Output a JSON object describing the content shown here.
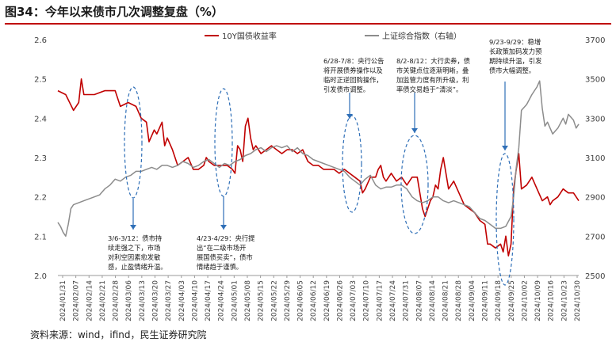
{
  "title": "图34：今年以来债市几次调整复盘（%）",
  "source": "资料来源：wind，ifind，民生证券研究院",
  "chart_data": {
    "type": "line",
    "series": [
      {
        "name": "10Y国债收益率",
        "axis": "left",
        "color": "#c00000",
        "points": [
          [
            0,
            2.47
          ],
          [
            3,
            2.46
          ],
          [
            6,
            2.42
          ],
          [
            8,
            2.44
          ],
          [
            9,
            2.5
          ],
          [
            10,
            2.46
          ],
          [
            14,
            2.46
          ],
          [
            18,
            2.47
          ],
          [
            22,
            2.47
          ],
          [
            24,
            2.43
          ],
          [
            27,
            2.44
          ],
          [
            30,
            2.43
          ],
          [
            32,
            2.4
          ],
          [
            34,
            2.39
          ],
          [
            35,
            2.34
          ],
          [
            37,
            2.37
          ],
          [
            38,
            2.36
          ],
          [
            40,
            2.39
          ],
          [
            41,
            2.33
          ],
          [
            42,
            2.35
          ],
          [
            44,
            2.32
          ],
          [
            46,
            2.28
          ],
          [
            48,
            2.29
          ],
          [
            50,
            2.3
          ],
          [
            52,
            2.27
          ],
          [
            54,
            2.27
          ],
          [
            56,
            2.28
          ],
          [
            57,
            2.3
          ],
          [
            58,
            2.29
          ],
          [
            60,
            2.28
          ],
          [
            62,
            2.28
          ],
          [
            65,
            2.28
          ],
          [
            67,
            2.27
          ],
          [
            68,
            2.26
          ],
          [
            69,
            2.33
          ],
          [
            70,
            2.32
          ],
          [
            71,
            2.29
          ],
          [
            72,
            2.38
          ],
          [
            73,
            2.4
          ],
          [
            74,
            2.35
          ],
          [
            75,
            2.32
          ],
          [
            76,
            2.33
          ],
          [
            78,
            2.31
          ],
          [
            80,
            2.32
          ],
          [
            82,
            2.33
          ],
          [
            84,
            2.32
          ],
          [
            86,
            2.31
          ],
          [
            88,
            2.32
          ],
          [
            90,
            2.32
          ],
          [
            92,
            2.31
          ],
          [
            94,
            2.32
          ],
          [
            96,
            2.29
          ],
          [
            98,
            2.28
          ],
          [
            100,
            2.28
          ],
          [
            102,
            2.27
          ],
          [
            104,
            2.27
          ],
          [
            106,
            2.27
          ],
          [
            108,
            2.26
          ],
          [
            110,
            2.27
          ],
          [
            112,
            2.26
          ],
          [
            114,
            2.25
          ],
          [
            116,
            2.24
          ],
          [
            117,
            2.21
          ],
          [
            118,
            2.22
          ],
          [
            120,
            2.25
          ],
          [
            122,
            2.25
          ],
          [
            123,
            2.27
          ],
          [
            124,
            2.28
          ],
          [
            125,
            2.25
          ],
          [
            126,
            2.24
          ],
          [
            128,
            2.26
          ],
          [
            130,
            2.24
          ],
          [
            132,
            2.25
          ],
          [
            134,
            2.23
          ],
          [
            136,
            2.25
          ],
          [
            138,
            2.25
          ],
          [
            140,
            2.17
          ],
          [
            141,
            2.15
          ],
          [
            142,
            2.17
          ],
          [
            143,
            2.19
          ],
          [
            144,
            2.2
          ],
          [
            145,
            2.23
          ],
          [
            146,
            2.22
          ],
          [
            147,
            2.27
          ],
          [
            148,
            2.3
          ],
          [
            149,
            2.26
          ],
          [
            150,
            2.22
          ],
          [
            152,
            2.24
          ],
          [
            154,
            2.21
          ],
          [
            156,
            2.18
          ],
          [
            158,
            2.17
          ],
          [
            160,
            2.16
          ],
          [
            162,
            2.14
          ],
          [
            164,
            2.13
          ],
          [
            165,
            2.08
          ],
          [
            166,
            2.08
          ],
          [
            168,
            2.07
          ],
          [
            170,
            2.08
          ],
          [
            171,
            2.06
          ],
          [
            172,
            2.1
          ],
          [
            173,
            2.05
          ],
          [
            174,
            2.08
          ],
          [
            175,
            2.22
          ],
          [
            176,
            2.27
          ],
          [
            177,
            2.31
          ],
          [
            178,
            2.22
          ],
          [
            180,
            2.23
          ],
          [
            182,
            2.25
          ],
          [
            184,
            2.22
          ],
          [
            186,
            2.19
          ],
          [
            188,
            2.2
          ],
          [
            189,
            2.18
          ],
          [
            190,
            2.19
          ],
          [
            192,
            2.2
          ],
          [
            194,
            2.22
          ],
          [
            196,
            2.21
          ],
          [
            198,
            2.21
          ],
          [
            200,
            2.19
          ]
        ]
      },
      {
        "name": "上证综合指数（右轴）",
        "axis": "right",
        "color": "#8c8c8c",
        "points": [
          [
            0,
            2770
          ],
          [
            1,
            2750
          ],
          [
            2,
            2720
          ],
          [
            3,
            2700
          ],
          [
            4,
            2760
          ],
          [
            5,
            2840
          ],
          [
            6,
            2860
          ],
          [
            8,
            2870
          ],
          [
            10,
            2880
          ],
          [
            14,
            2900
          ],
          [
            16,
            2910
          ],
          [
            18,
            2940
          ],
          [
            20,
            2960
          ],
          [
            22,
            2990
          ],
          [
            24,
            2980
          ],
          [
            26,
            3000
          ],
          [
            28,
            3010
          ],
          [
            30,
            3030
          ],
          [
            32,
            3030
          ],
          [
            34,
            3040
          ],
          [
            36,
            3050
          ],
          [
            38,
            3040
          ],
          [
            40,
            3060
          ],
          [
            42,
            3060
          ],
          [
            44,
            3050
          ],
          [
            46,
            3060
          ],
          [
            48,
            3080
          ],
          [
            50,
            3070
          ],
          [
            52,
            3050
          ],
          [
            54,
            3060
          ],
          [
            56,
            3080
          ],
          [
            58,
            3090
          ],
          [
            60,
            3070
          ],
          [
            62,
            3050
          ],
          [
            64,
            3070
          ],
          [
            66,
            3060
          ],
          [
            68,
            3080
          ],
          [
            70,
            3090
          ],
          [
            72,
            3110
          ],
          [
            74,
            3120
          ],
          [
            76,
            3140
          ],
          [
            78,
            3150
          ],
          [
            80,
            3130
          ],
          [
            82,
            3150
          ],
          [
            84,
            3160
          ],
          [
            86,
            3150
          ],
          [
            88,
            3160
          ],
          [
            90,
            3130
          ],
          [
            92,
            3150
          ],
          [
            94,
            3120
          ],
          [
            96,
            3110
          ],
          [
            98,
            3090
          ],
          [
            100,
            3080
          ],
          [
            102,
            3070
          ],
          [
            104,
            3060
          ],
          [
            106,
            3050
          ],
          [
            108,
            3040
          ],
          [
            110,
            3030
          ],
          [
            112,
            3000
          ],
          [
            114,
            2980
          ],
          [
            116,
            2960
          ],
          [
            118,
            2990
          ],
          [
            120,
            3010
          ],
          [
            122,
            2960
          ],
          [
            124,
            2940
          ],
          [
            126,
            2950
          ],
          [
            128,
            2950
          ],
          [
            130,
            2960
          ],
          [
            132,
            2960
          ],
          [
            134,
            2940
          ],
          [
            136,
            2900
          ],
          [
            138,
            2880
          ],
          [
            140,
            2870
          ],
          [
            142,
            2880
          ],
          [
            144,
            2900
          ],
          [
            146,
            2900
          ],
          [
            148,
            2880
          ],
          [
            150,
            2870
          ],
          [
            152,
            2880
          ],
          [
            154,
            2870
          ],
          [
            156,
            2860
          ],
          [
            158,
            2850
          ],
          [
            160,
            2820
          ],
          [
            162,
            2790
          ],
          [
            164,
            2780
          ],
          [
            166,
            2760
          ],
          [
            168,
            2740
          ],
          [
            170,
            2740
          ],
          [
            172,
            2750
          ],
          [
            174,
            2800
          ],
          [
            175,
            2900
          ],
          [
            176,
            3050
          ],
          [
            177,
            3150
          ],
          [
            178,
            3340
          ],
          [
            180,
            3370
          ],
          [
            182,
            3420
          ],
          [
            184,
            3460
          ],
          [
            185,
            3490
          ],
          [
            186,
            3350
          ],
          [
            187,
            3260
          ],
          [
            188,
            3280
          ],
          [
            190,
            3220
          ],
          [
            192,
            3250
          ],
          [
            194,
            3300
          ],
          [
            195,
            3270
          ],
          [
            196,
            3320
          ],
          [
            198,
            3290
          ],
          [
            199,
            3250
          ],
          [
            200,
            3270
          ]
        ]
      }
    ],
    "x_count": 200,
    "xlim": [
      0,
      200
    ],
    "x_ticks": [
      "2024/01/31",
      "2024/02/07",
      "2024/02/14",
      "2024/02/21",
      "2024/02/28",
      "2024/03/06",
      "2024/03/13",
      "2024/03/20",
      "2024/03/27",
      "2024/04/03",
      "2024/04/10",
      "2024/04/17",
      "2024/04/24",
      "2024/05/01",
      "2024/05/08",
      "2024/05/15",
      "2024/05/22",
      "2024/05/29",
      "2024/06/05",
      "2024/06/12",
      "2024/06/19",
      "2024/06/26",
      "2024/07/03",
      "2024/07/10",
      "2024/07/17",
      "2024/07/24",
      "2024/07/31",
      "2024/08/07",
      "2024/08/14",
      "2024/08/21",
      "2024/08/28",
      "2024/09/04",
      "2024/09/11",
      "2024/09/18",
      "2024/09/25",
      "2024/10/02",
      "2024/10/09",
      "2024/10/16",
      "2024/10/23",
      "2024/10/30"
    ],
    "y_left": {
      "min": 2.0,
      "max": 2.6,
      "ticks": [
        "2.6",
        "2.5",
        "2.4",
        "2.3",
        "2.2",
        "2.1",
        "2.0"
      ]
    },
    "y_right": {
      "min": 2500,
      "max": 3700,
      "ticks": [
        "3700",
        "3500",
        "3300",
        "3100",
        "2900",
        "2700",
        "2500"
      ]
    },
    "legend": [
      "10Y国债收益率",
      "上证综合指数（右轴）"
    ],
    "annotations": [
      {
        "lines": [
          "3/6-3/12：债市持",
          "续走强之下，市场",
          "对利空因素愈发敏",
          "感，止盈情绪升温。"
        ]
      },
      {
        "lines": [
          "4/23-4/29：央行提",
          "出“在二级市场开",
          "展国债买卖”，债市",
          "情绪趋于谨慎。"
        ]
      },
      {
        "lines": [
          "6/28-7/8：央行公告",
          "将开展债券操作以及",
          "临时正逆回购操作，",
          "引发债市调整。"
        ]
      },
      {
        "lines": [
          "8/2-8/12：大行卖券，债",
          "市关键点位逐渐明晰，叠",
          "加监管力度有所升级，利",
          "率债交易趋于“清淡”。"
        ]
      },
      {
        "lines": [
          "9/23-9/29：稳增",
          "长政策加码发力预",
          "期持续升温，引发",
          "债市大幅调整。"
        ]
      }
    ]
  }
}
